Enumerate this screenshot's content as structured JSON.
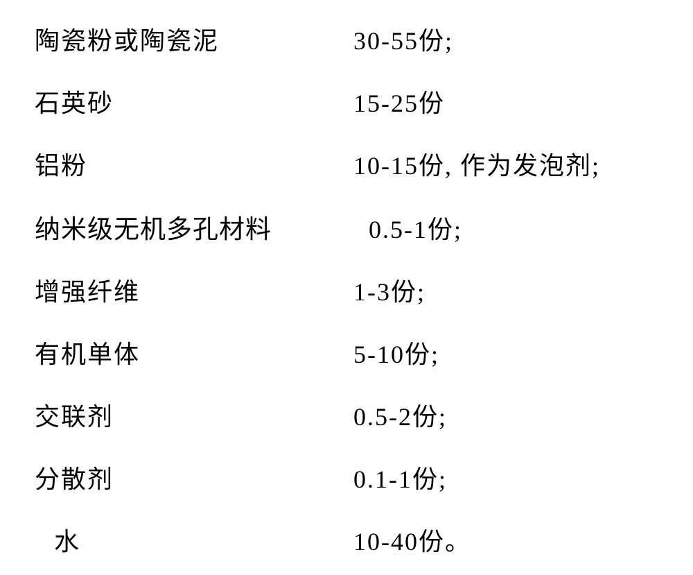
{
  "ingredients": {
    "rows": [
      {
        "label": "陶瓷粉或陶瓷泥",
        "value": "30-55份;",
        "label_class": "",
        "value_class": ""
      },
      {
        "label": "石英砂",
        "value": "15-25份",
        "label_class": "",
        "value_class": ""
      },
      {
        "label": "铝粉",
        "value": "10-15份, 作为发泡剂;",
        "label_class": "",
        "value_class": ""
      },
      {
        "label": "纳米级无机多孔材料",
        "value": "0.5-1份;",
        "label_class": "label-hei",
        "value_class": "value-indent"
      },
      {
        "label": "增强纤维",
        "value": "1-3份;",
        "label_class": "",
        "value_class": ""
      },
      {
        "label": "有机单体",
        "value": "5-10份;",
        "label_class": "",
        "value_class": ""
      },
      {
        "label": "交联剂",
        "value": "0.5-2份;",
        "label_class": "",
        "value_class": ""
      },
      {
        "label": "分散剂",
        "value": "0.1-1份;",
        "label_class": "",
        "value_class": ""
      },
      {
        "label": "水",
        "value": "10-40份。",
        "label_class": "label-indent",
        "value_class": ""
      }
    ]
  },
  "styling": {
    "background_color": "#ffffff",
    "text_color": "#000000",
    "font_size": 36,
    "row_spacing": 38,
    "label_width": 460,
    "font_family_kai": "KaiTi",
    "font_family_hei": "SimHei"
  }
}
